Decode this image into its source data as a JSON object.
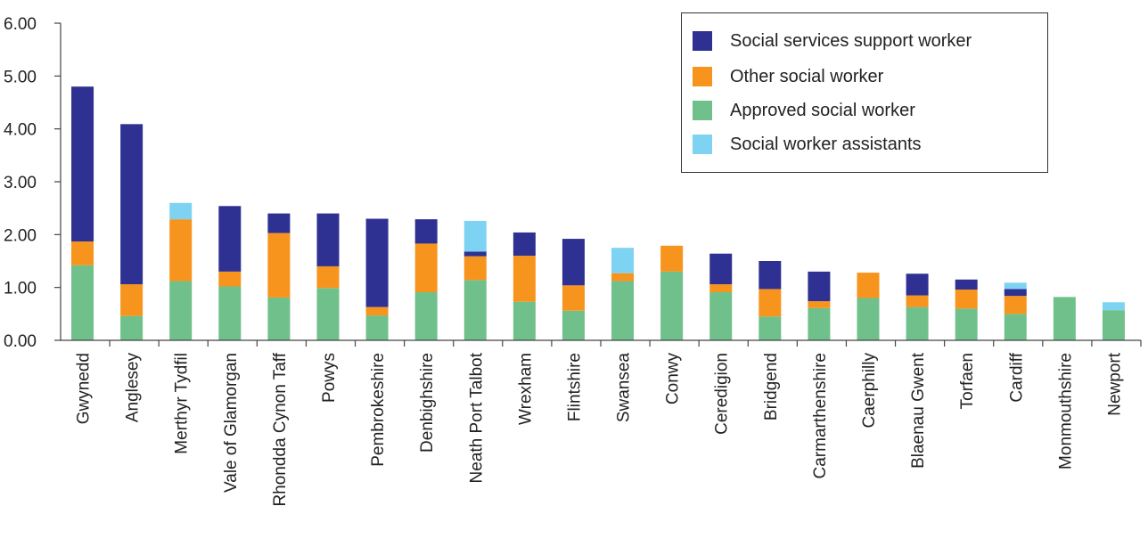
{
  "chart_data": {
    "type": "bar",
    "stacked": true,
    "categories": [
      "Gwynedd",
      "Anglesey",
      "Merthyr Tydfil",
      "Vale of Glamorgan",
      "Rhondda Cynon Taff",
      "Powys",
      "Pembrokeshire",
      "Denbighshire",
      "Neath Port Talbot",
      "Wrexham",
      "Flintshire",
      "Swansea",
      "Conwy",
      "Ceredigion",
      "Bridgend",
      "Carmarthenshire",
      "Caerphilly",
      "Blaenau Gwent",
      "Torfaen",
      "Cardiff",
      "Monmouthshire",
      "Newport"
    ],
    "ylim": [
      0,
      6
    ],
    "yticks": [
      "0.00",
      "1.00",
      "2.00",
      "3.00",
      "4.00",
      "5.00",
      "6.00"
    ],
    "grid": false,
    "legend_position": "top-right",
    "series": [
      {
        "name": "Approved social worker",
        "color": "#6fc08a",
        "values": [
          1.42,
          0.46,
          1.12,
          1.02,
          0.81,
          0.99,
          0.47,
          0.91,
          1.14,
          0.73,
          0.56,
          1.12,
          1.3,
          0.91,
          0.45,
          0.61,
          0.8,
          0.63,
          0.6,
          0.5,
          0.82,
          0.57
        ]
      },
      {
        "name": "Other social worker",
        "color": "#f7941d",
        "values": [
          0.45,
          0.6,
          1.17,
          0.28,
          1.22,
          0.41,
          0.16,
          0.92,
          0.45,
          0.87,
          0.48,
          0.15,
          0.49,
          0.15,
          0.52,
          0.13,
          0.48,
          0.22,
          0.36,
          0.34,
          0,
          0
        ]
      },
      {
        "name": "Social services support worker",
        "color": "#2e3192",
        "values": [
          2.93,
          3.03,
          0,
          1.24,
          0.37,
          1.0,
          1.67,
          0.46,
          0.09,
          0.44,
          0.88,
          0,
          0,
          0.58,
          0.53,
          0.56,
          0,
          0.41,
          0.19,
          0.13,
          0,
          0
        ]
      },
      {
        "name": "Social worker assistants",
        "color": "#7fd3f2",
        "values": [
          0,
          0,
          0.31,
          0,
          0,
          0,
          0,
          0,
          0.58,
          0,
          0,
          0.48,
          0,
          0,
          0,
          0,
          0,
          0,
          0,
          0.12,
          0,
          0.15
        ]
      }
    ],
    "stack_order": [
      "Approved social worker",
      "Other social worker",
      "Social services support worker",
      "Social worker assistants"
    ],
    "legend_order": [
      "Social services support worker",
      "Other social worker",
      "Approved social worker",
      "Social worker assistants"
    ]
  }
}
